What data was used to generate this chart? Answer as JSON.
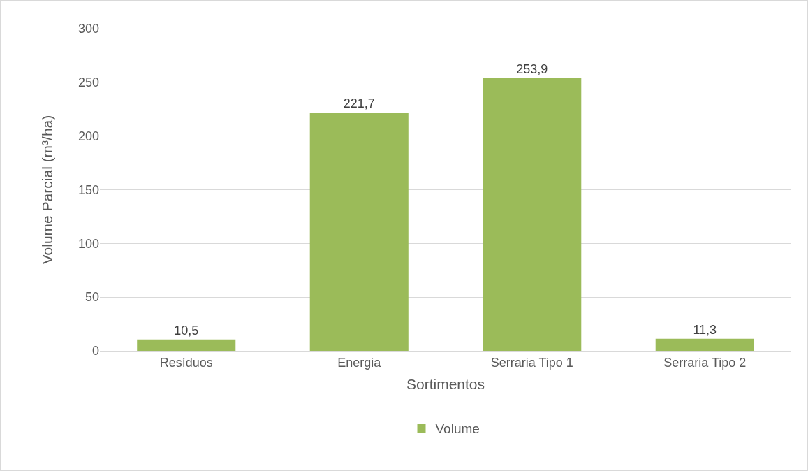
{
  "chart_data": {
    "type": "bar",
    "xlabel": "Sortimentos",
    "ylabel": "Volume Parcial (m³/ha)",
    "categories": [
      "Resíduos",
      "Energia",
      "Serraria Tipo 1",
      "Serraria Tipo 2"
    ],
    "series": [
      {
        "name": "Volume",
        "color": "#9bbb59",
        "values": [
          10.5,
          221.7,
          253.9,
          11.3
        ],
        "value_labels": [
          "10,5",
          "221,7",
          "253,9",
          "11,3"
        ]
      }
    ],
    "ylim": [
      0,
      300
    ],
    "yticks": [
      0,
      50,
      100,
      150,
      200,
      250,
      300
    ],
    "grid": "y",
    "legend": "bottom"
  }
}
